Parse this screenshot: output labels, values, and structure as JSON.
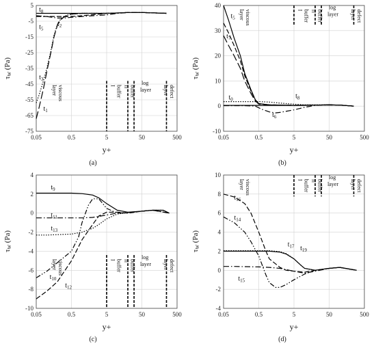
{
  "figure": {
    "x_axis_title": "y+",
    "y_axis_title_main": "τ",
    "y_axis_title_sub": "W",
    "y_axis_title_unit": " (Pa)",
    "region_labels": [
      "viscous layer",
      "buffer I",
      "buffer II",
      "log layer",
      "defect layer"
    ]
  },
  "chart_data": [
    {
      "panel": "(a)",
      "type": "line",
      "xscale": "log",
      "xlabel": "y+",
      "ylabel": "τW (Pa)",
      "xlim": [
        0.05,
        500
      ],
      "ylim": [
        -75,
        5
      ],
      "x_ticks": [
        "0.05",
        "0.5",
        "5",
        "50",
        "500"
      ],
      "y_ticks": [
        5,
        -5,
        -15,
        -25,
        -35,
        -45,
        -55,
        -65,
        -75
      ],
      "region_boundaries": [
        5,
        20,
        30,
        250
      ],
      "series": [
        {
          "name": "t8",
          "style": "solid",
          "x": [
            0.05,
            0.2,
            0.5,
            1,
            3,
            5,
            10,
            20,
            50,
            100,
            250
          ],
          "y": [
            0,
            0,
            0,
            0,
            0,
            0,
            0.2,
            0.5,
            0.5,
            0.3,
            0
          ]
        },
        {
          "name": "t2",
          "style": "dashed",
          "x": [
            0.05,
            0.2,
            0.5,
            1,
            3,
            5,
            10,
            20,
            50,
            100,
            250
          ],
          "y": [
            -2,
            -2,
            -2,
            -1.5,
            -0.5,
            0,
            0.2,
            0.5,
            0.5,
            0.3,
            0
          ]
        },
        {
          "name": "t5",
          "style": "dashdot",
          "x": [
            0.05,
            0.1,
            0.2,
            0.3,
            0.5,
            1,
            2,
            5,
            10,
            20,
            50,
            100,
            250
          ],
          "y": [
            -1.5,
            -2,
            -3,
            -3,
            -2.5,
            -2,
            -1.5,
            -1,
            0,
            0.5,
            0.5,
            0.3,
            0
          ]
        },
        {
          "name": "t3",
          "style": "dotted",
          "x": [
            0.05,
            0.06,
            0.08,
            0.1,
            0.13,
            0.16,
            0.2,
            0.25,
            0.3,
            0.4,
            0.5,
            1,
            5,
            10,
            20,
            50,
            100,
            250
          ],
          "y": [
            -57,
            -52,
            -43,
            -35,
            -24,
            -14,
            -7,
            -3.5,
            -2,
            -1,
            -0.5,
            0,
            0,
            0.2,
            0.5,
            0.5,
            0.3,
            0
          ]
        },
        {
          "name": "t1",
          "style": "longdash",
          "x": [
            0.05,
            0.06,
            0.08,
            0.1,
            0.13,
            0.16,
            0.2,
            0.25,
            0.3,
            0.4,
            0.5,
            1,
            5,
            10,
            20,
            50,
            100,
            250
          ],
          "y": [
            -67,
            -60,
            -48,
            -37,
            -25,
            -15,
            -7.5,
            -4,
            -2.5,
            -1.2,
            -0.5,
            0,
            0,
            0.2,
            0.5,
            0.5,
            0.3,
            0
          ]
        }
      ]
    },
    {
      "panel": "(b)",
      "type": "line",
      "xscale": "log",
      "xlabel": "y+",
      "ylabel": "τW (Pa)",
      "xlim": [
        0.05,
        500
      ],
      "ylim": [
        -10,
        40
      ],
      "x_ticks": [
        "0.05",
        "0.5",
        "5",
        "50",
        "500"
      ],
      "y_ticks": [
        40,
        30,
        20,
        10,
        0,
        -10
      ],
      "region_boundaries": [
        5,
        20,
        30,
        250
      ],
      "series": [
        {
          "name": "t8",
          "style": "dotted",
          "x": [
            0.05,
            0.2,
            0.5,
            1,
            2,
            5,
            10,
            20,
            50,
            100,
            250
          ],
          "y": [
            1.8,
            1.8,
            1.8,
            1.6,
            1.2,
            0.8,
            0.5,
            0.5,
            0.5,
            0.4,
            0
          ]
        },
        {
          "name": "t0",
          "style": "solid",
          "x": [
            0.05,
            0.2,
            0.5,
            1,
            2,
            5,
            10,
            20,
            50,
            100,
            250
          ],
          "y": [
            0.3,
            0.3,
            0.3,
            0.3,
            0.3,
            0.3,
            0.3,
            0.4,
            0.5,
            0.4,
            0
          ]
        },
        {
          "name": "t6",
          "style": "dashdot",
          "x": [
            0.05,
            0.2,
            0.4,
            0.6,
            1,
            1.5,
            2,
            5,
            10,
            20,
            50,
            100,
            250
          ],
          "y": [
            0.2,
            0.2,
            0,
            -1.2,
            -2.3,
            -2.7,
            -2.5,
            -1.5,
            -0.5,
            0.3,
            0.5,
            0.4,
            0
          ]
        },
        {
          "name": "t5",
          "style": "dashed",
          "x": [
            0.05,
            0.07,
            0.1,
            0.15,
            0.2,
            0.3,
            0.4,
            0.5,
            1,
            5,
            20,
            50,
            100,
            250
          ],
          "y": [
            33,
            29,
            24,
            18,
            12,
            6,
            2.5,
            1,
            0.5,
            0.3,
            0.4,
            0.5,
            0.4,
            0
          ]
        },
        {
          "name": "t7",
          "style": "longdash",
          "x": [
            0.05,
            0.07,
            0.1,
            0.15,
            0.2,
            0.3,
            0.4,
            0.5,
            1,
            5,
            20,
            50,
            100,
            250
          ],
          "y": [
            28,
            24,
            20,
            15,
            10,
            5,
            2,
            0.8,
            0.5,
            0.3,
            0.4,
            0.5,
            0.4,
            0
          ]
        },
        {
          "name": "",
          "style": "solid",
          "x": [
            0.05,
            0.07,
            0.1,
            0.15,
            0.2,
            0.3,
            0.4,
            0.5,
            1,
            5,
            20,
            50,
            100,
            250
          ],
          "y": [
            40,
            34,
            27,
            20,
            13,
            6.5,
            2.5,
            1,
            0.5,
            0.3,
            0.4,
            0.5,
            0.4,
            0
          ]
        }
      ]
    },
    {
      "panel": "(c)",
      "type": "line",
      "xscale": "log",
      "xlabel": "y+",
      "ylabel": "τW (Pa)",
      "xlim": [
        0.05,
        500
      ],
      "ylim": [
        -10,
        4
      ],
      "x_ticks": [
        "0.05",
        "0.5",
        "5",
        "50",
        "500"
      ],
      "y_ticks": [
        4,
        2,
        0,
        -2,
        -4,
        -6,
        -8,
        -10
      ],
      "region_boundaries": [
        5,
        20,
        30,
        250
      ],
      "series": [
        {
          "name": "t9",
          "style": "solid",
          "x": [
            0.05,
            0.1,
            0.5,
            1,
            2,
            3,
            5,
            10,
            20,
            50,
            100,
            200,
            300
          ],
          "y": [
            2.1,
            2.1,
            2.1,
            2.05,
            1.9,
            1.6,
            1,
            0.3,
            0.1,
            0.2,
            0.3,
            0.3,
            0
          ]
        },
        {
          "name": "t11",
          "style": "dashdot",
          "x": [
            0.05,
            0.1,
            0.5,
            1,
            2,
            5,
            10,
            20,
            50,
            100,
            200,
            300
          ],
          "y": [
            -0.5,
            -0.5,
            -0.5,
            -0.5,
            -0.45,
            -0.2,
            0,
            0.05,
            0.2,
            0.3,
            0.3,
            0
          ]
        },
        {
          "name": "t13",
          "style": "dotted",
          "x": [
            0.05,
            0.1,
            0.5,
            1,
            2,
            3,
            5,
            10,
            20,
            50,
            100,
            200,
            300
          ],
          "y": [
            -2.3,
            -2.3,
            -2.2,
            -2,
            -1.6,
            -1.2,
            -0.6,
            -0.1,
            0.05,
            0.2,
            0.3,
            0.3,
            0
          ]
        },
        {
          "name": "t10",
          "style": "dashdotdot",
          "x": [
            0.05,
            0.1,
            0.2,
            0.5,
            0.8,
            1,
            1.5,
            2,
            3,
            5,
            10,
            20,
            50,
            100,
            300
          ],
          "y": [
            -6.8,
            -6.1,
            -5.2,
            -4,
            -2.5,
            -1,
            0.8,
            1.5,
            1.5,
            0.5,
            0,
            0,
            0.2,
            0.3,
            0
          ]
        },
        {
          "name": "t12",
          "style": "dashed",
          "x": [
            0.05,
            0.1,
            0.2,
            0.5,
            1,
            2,
            3,
            5,
            10,
            20,
            50,
            100,
            300
          ],
          "y": [
            -9,
            -8.2,
            -7.2,
            -5,
            -2.8,
            -1.2,
            -0.3,
            0.1,
            0.1,
            0,
            0.2,
            0.3,
            0
          ]
        }
      ]
    },
    {
      "panel": "(d)",
      "type": "line",
      "xscale": "log",
      "xlabel": "y+",
      "ylabel": "τW (Pa)",
      "xlim": [
        0.05,
        500
      ],
      "ylim": [
        -4,
        10
      ],
      "x_ticks": [
        "0.05",
        "0.5",
        "5",
        "50",
        "500"
      ],
      "y_ticks": [
        10,
        8,
        6,
        4,
        2,
        0,
        -2,
        -4
      ],
      "region_boundaries": [
        5,
        20,
        30,
        250
      ],
      "series": [
        {
          "name": "t16",
          "style": "dashed",
          "x": [
            0.05,
            0.1,
            0.2,
            0.3,
            0.5,
            0.8,
            1,
            2,
            3,
            5,
            10,
            20,
            50,
            100,
            300
          ],
          "y": [
            8,
            7.7,
            7,
            6,
            4,
            2,
            1.2,
            0.3,
            0,
            -0.1,
            -0.2,
            0,
            0.2,
            0.3,
            0
          ]
        },
        {
          "name": "t14",
          "style": "dashdotdot",
          "x": [
            0.05,
            0.1,
            0.2,
            0.3,
            0.5,
            0.8,
            1,
            1.5,
            2,
            3,
            5,
            10,
            20,
            50,
            100,
            300
          ],
          "y": [
            5.6,
            5,
            4,
            3,
            1.5,
            -0.5,
            -1.3,
            -1.8,
            -1.8,
            -1.5,
            -1,
            -0.4,
            0,
            0.2,
            0.3,
            0
          ]
        },
        {
          "name": "t17",
          "style": "solid",
          "x": [
            0.05,
            0.1,
            0.5,
            1,
            2,
            3,
            5,
            8,
            10,
            20,
            50,
            100,
            300
          ],
          "y": [
            2,
            2,
            2,
            2,
            1.9,
            1.7,
            1.2,
            0.5,
            0.2,
            0,
            0.2,
            0.3,
            0
          ]
        },
        {
          "name": "t19",
          "style": "dotted",
          "x": [
            0.05,
            0.1,
            0.5,
            1,
            2,
            3,
            5,
            8,
            10,
            20,
            50,
            100,
            300
          ],
          "y": [
            2.05,
            2.05,
            2.05,
            2.05,
            1.95,
            1.75,
            1.2,
            0.5,
            0.2,
            0,
            0.2,
            0.3,
            0
          ]
        },
        {
          "name": "t15",
          "style": "dashdot",
          "x": [
            0.05,
            0.1,
            0.5,
            1,
            2,
            5,
            10,
            20,
            50,
            100,
            300
          ],
          "y": [
            0.4,
            0.4,
            0.35,
            0.3,
            0.2,
            -0.1,
            -0.3,
            -0.1,
            0.2,
            0.3,
            0
          ]
        }
      ]
    }
  ]
}
